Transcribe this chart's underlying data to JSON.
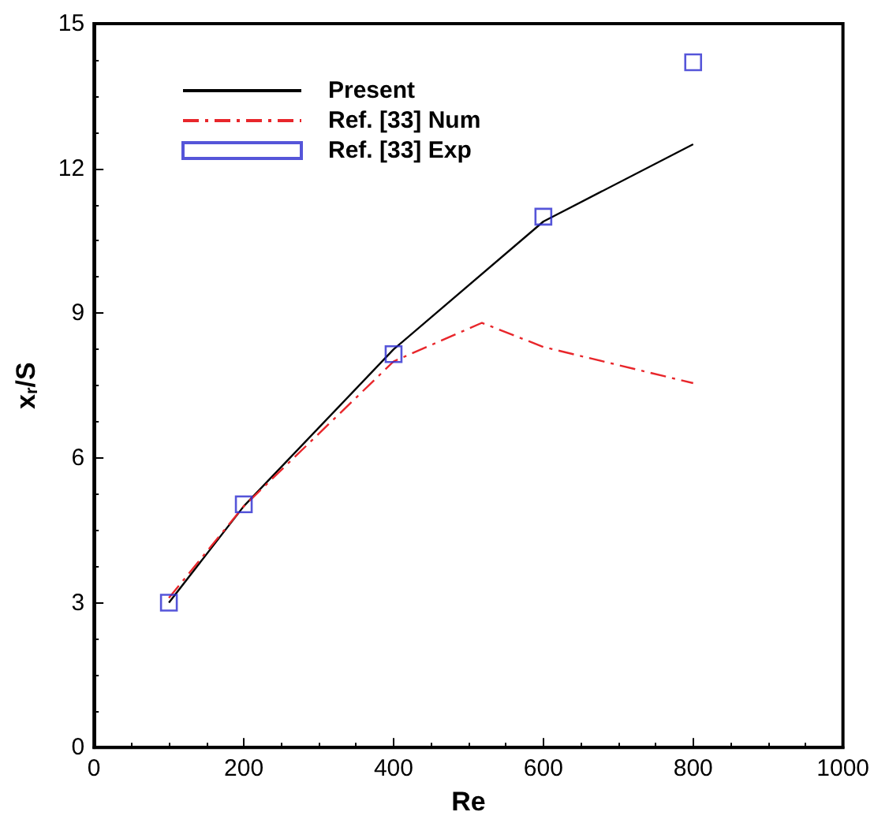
{
  "chart_data": {
    "type": "line",
    "xlabel": "Re",
    "ylabel": "x$_{r}$/S",
    "xlim": [
      0,
      1000
    ],
    "xticks": [
      0,
      200,
      400,
      600,
      800,
      1000
    ],
    "ylim": [
      0,
      15
    ],
    "yticks": [
      0,
      3,
      6,
      9,
      12,
      15
    ],
    "grid": false,
    "legend": "top left",
    "series": [
      {
        "name": "Present",
        "type": "line",
        "color": "#000000",
        "line_style": "solid",
        "marker": "none",
        "x": [
          100,
          200,
          400,
          600,
          800
        ],
        "values": [
          3.0,
          5.0,
          8.25,
          10.9,
          12.5
        ]
      },
      {
        "name": "Ref. [33] Num",
        "type": "line",
        "color": "#e8262b",
        "line_style": "dashdot",
        "marker": "none",
        "x": [
          100,
          200,
          400,
          518,
          600,
          800
        ],
        "values": [
          3.1,
          5.0,
          8.0,
          8.8,
          8.3,
          7.55
        ]
      },
      {
        "name": "Ref. [33] Exp",
        "type": "scatter",
        "color": "#2b2bd0",
        "marker": "square",
        "x": [
          100,
          200,
          400,
          600,
          800
        ],
        "values": [
          3.0,
          5.04,
          8.15,
          11.0,
          14.2
        ]
      }
    ]
  }
}
